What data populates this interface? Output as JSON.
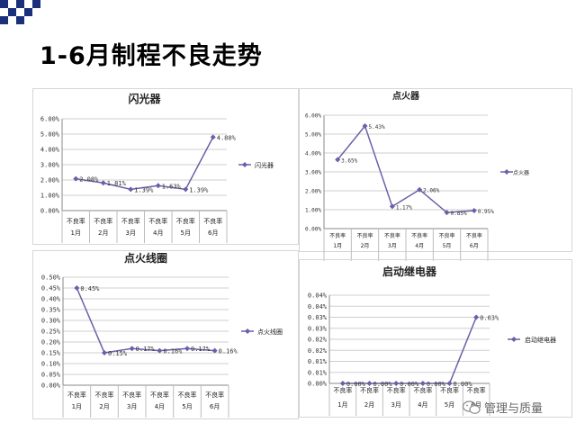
{
  "slide": {
    "title": "1-6月制程不良走势",
    "watermark": "管理与质量",
    "watermark_icon": "wechat-icon",
    "corner_color": "#1c2f7a"
  },
  "chart_data": [
    {
      "type": "line",
      "title": "闪光器",
      "categories": [
        "不良率 1月",
        "不良率 2月",
        "不良率 3月",
        "不良率 4月",
        "不良率 5月",
        "不良率 6月"
      ],
      "category_lines": [
        [
          "不良率",
          "1月"
        ],
        [
          "不良率",
          "2月"
        ],
        [
          "不良率",
          "3月"
        ],
        [
          "不良率",
          "4月"
        ],
        [
          "不良率",
          "5月"
        ],
        [
          "不良率",
          "6月"
        ]
      ],
      "series": [
        {
          "name": "闪光器",
          "values": [
            2.08,
            1.81,
            1.39,
            1.63,
            1.39,
            4.8
          ]
        }
      ],
      "data_labels": [
        "2.08%",
        "1.81%",
        "1.39%",
        "1.63%",
        "1.39%",
        "4.80%"
      ],
      "yticks": [
        "0.00%",
        "1.00%",
        "2.00%",
        "3.00%",
        "4.00%",
        "5.00%",
        "6.00%"
      ],
      "ylim": [
        0,
        6
      ],
      "grid": true,
      "legend": "right",
      "color": "#6b5fa8"
    },
    {
      "type": "line",
      "title": "点火器",
      "categories": [
        "不良率 1月",
        "不良率 2月",
        "不良率 3月",
        "不良率 4月",
        "不良率 5月",
        "不良率 6月"
      ],
      "category_lines": [
        [
          "不良率",
          "1月"
        ],
        [
          "不良率",
          "2月"
        ],
        [
          "不良率",
          "3月"
        ],
        [
          "不良率",
          "4月"
        ],
        [
          "不良率",
          "5月"
        ],
        [
          "不良率",
          "6月"
        ]
      ],
      "series": [
        {
          "name": "点火器",
          "values": [
            3.65,
            5.43,
            1.17,
            2.06,
            0.85,
            0.95
          ]
        }
      ],
      "data_labels": [
        "3.65%",
        "5.43%",
        "1.17%",
        "2.06%",
        "0.85%",
        "0.95%"
      ],
      "yticks": [
        "0.00%",
        "1.00%",
        "2.00%",
        "3.00%",
        "4.00%",
        "5.00%",
        "6.00%"
      ],
      "ylim": [
        0,
        6
      ],
      "grid": true,
      "legend": "right",
      "color": "#6b5fa8"
    },
    {
      "type": "line",
      "title": "点火线圈",
      "categories": [
        "不良率 1月",
        "不良率 2月",
        "不良率 3月",
        "不良率 4月",
        "不良率 5月",
        "不良率 6月"
      ],
      "category_lines": [
        [
          "不良率",
          "1月"
        ],
        [
          "不良率",
          "2月"
        ],
        [
          "不良率",
          "3月"
        ],
        [
          "不良率",
          "4月"
        ],
        [
          "不良率",
          "5月"
        ],
        [
          "不良率",
          "6月"
        ]
      ],
      "series": [
        {
          "name": "点火线圈",
          "values": [
            0.45,
            0.15,
            0.17,
            0.16,
            0.17,
            0.16
          ]
        }
      ],
      "data_labels": [
        "0.45%",
        "0.15%",
        "0.17%",
        "0.16%",
        "0.17%",
        "0.16%"
      ],
      "yticks": [
        "0.00%",
        "0.05%",
        "0.10%",
        "0.15%",
        "0.20%",
        "0.25%",
        "0.30%",
        "0.35%",
        "0.40%",
        "0.45%",
        "0.50%"
      ],
      "ylim": [
        0,
        0.5
      ],
      "grid": true,
      "legend": "right",
      "color": "#6b5fa8"
    },
    {
      "type": "line",
      "title": "启动继电器",
      "categories": [
        "不良率 1月",
        "不良率 2月",
        "不良率 3月",
        "不良率 4月",
        "不良率 5月",
        "不良率 6月"
      ],
      "category_lines": [
        [
          "不良率",
          "1月"
        ],
        [
          "不良率",
          "2月"
        ],
        [
          "不良率",
          "3月"
        ],
        [
          "不良率",
          "4月"
        ],
        [
          "不良率",
          "5月"
        ],
        [
          "不良率",
          "6月"
        ]
      ],
      "series": [
        {
          "name": "启动继电器",
          "values": [
            0,
            0,
            0,
            0,
            0,
            0.03
          ]
        }
      ],
      "data_labels": [
        "0.00%",
        "0.00%",
        "0.00%",
        "0.00%",
        "0.00%",
        "0.03%"
      ],
      "yticks": [
        "0.00%",
        "0.01%",
        "0.01%",
        "0.02%",
        "0.02%",
        "0.03%",
        "0.03%",
        "0.04%",
        "0.04%"
      ],
      "ylim": [
        0,
        0.04
      ],
      "grid": true,
      "legend": "right",
      "color": "#6b5fa8"
    }
  ]
}
